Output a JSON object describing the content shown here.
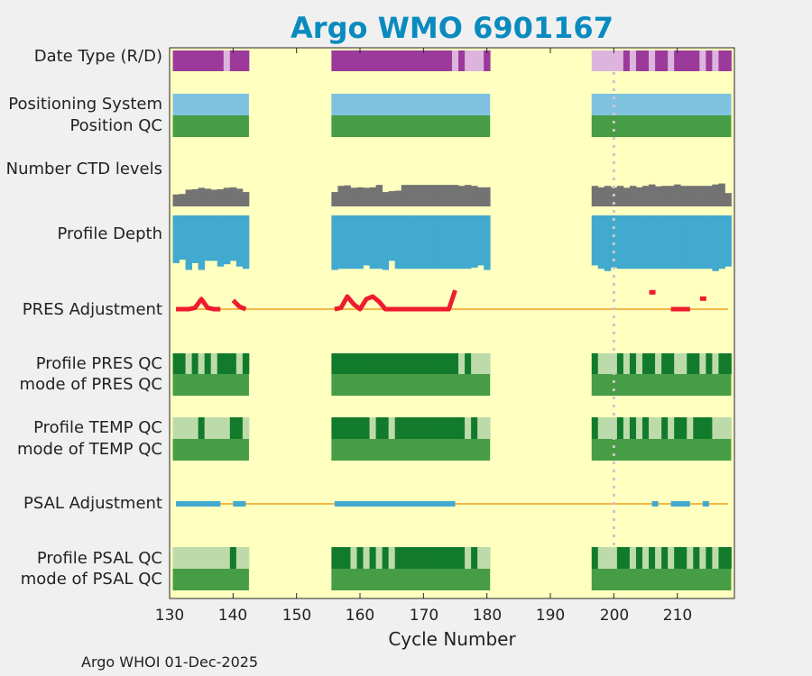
{
  "chart_data": {
    "type": "timeline-heatmap",
    "title": "Argo WMO 6901167",
    "xlabel": "Cycle Number",
    "xlim": [
      130,
      219
    ],
    "xticks": [
      130,
      140,
      150,
      160,
      170,
      180,
      190,
      200,
      210
    ],
    "segments": [
      [
        131,
        142
      ],
      [
        156,
        180
      ],
      [
        197,
        218
      ]
    ],
    "marker_cycle": 200,
    "colors": {
      "background": "#ffffc0",
      "realtime": "#9b3a9b",
      "delayed": "#ddb4dd",
      "positioning": "#7ec2e0",
      "position_qc": "#469d46",
      "ctd": "#737373",
      "depth": "#42a9cf",
      "adjust_line": "#f4b847",
      "pres_adjust": "#ee1c2e",
      "psal_adjust": "#42a9cf",
      "qc_dark": "#127b2b",
      "qc_light": "#bddbaa",
      "qc_mode": "#469d46",
      "marker": "#c8c8c8"
    },
    "rows": [
      {
        "label": "Date Type (R/D)"
      },
      {
        "label": "Positioning System"
      },
      {
        "label": "Position QC"
      },
      {
        "label": "Number CTD levels"
      },
      {
        "label": "Profile Depth"
      },
      {
        "label": "PRES Adjustment"
      },
      {
        "label": "Profile PRES QC"
      },
      {
        "label": "mode of PRES QC"
      },
      {
        "label": "Profile TEMP QC"
      },
      {
        "label": "mode of TEMP QC"
      },
      {
        "label": "PSAL Adjustment"
      },
      {
        "label": "Profile PSAL QC"
      },
      {
        "label": "mode of PSAL QC"
      }
    ],
    "date_type_delayed_cycles": [
      139,
      175,
      177,
      178,
      179,
      197,
      198,
      199,
      200,
      201,
      203,
      206,
      209,
      214,
      216
    ],
    "ctd_levels": {
      "131": 50,
      "132": 52,
      "133": 70,
      "134": 72,
      "135": 78,
      "136": 74,
      "137": 70,
      "138": 72,
      "139": 78,
      "140": 80,
      "141": 74,
      "142": 60,
      "156": 60,
      "157": 86,
      "158": 88,
      "159": 78,
      "160": 80,
      "161": 78,
      "162": 80,
      "163": 90,
      "164": 60,
      "165": 64,
      "166": 66,
      "167": 90,
      "168": 90,
      "169": 90,
      "170": 90,
      "171": 90,
      "172": 90,
      "173": 90,
      "174": 90,
      "175": 90,
      "176": 86,
      "177": 90,
      "178": 86,
      "179": 80,
      "180": 80,
      "197": 86,
      "198": 80,
      "199": 86,
      "200": 80,
      "201": 86,
      "202": 78,
      "203": 86,
      "204": 80,
      "205": 86,
      "206": 92,
      "207": 84,
      "208": 86,
      "209": 86,
      "210": 92,
      "211": 86,
      "212": 86,
      "213": 86,
      "214": 86,
      "215": 86,
      "216": 92,
      "217": 96,
      "218": 56
    },
    "profile_depth": {
      "131": 84,
      "132": 78,
      "133": 96,
      "134": 84,
      "135": 96,
      "136": 80,
      "137": 80,
      "138": 90,
      "139": 86,
      "140": 80,
      "141": 90,
      "142": 94,
      "156": 96,
      "157": 94,
      "158": 94,
      "159": 94,
      "160": 94,
      "161": 88,
      "162": 94,
      "163": 94,
      "164": 96,
      "165": 80,
      "166": 94,
      "167": 94,
      "168": 94,
      "169": 94,
      "170": 94,
      "171": 94,
      "172": 94,
      "173": 94,
      "174": 94,
      "175": 94,
      "176": 94,
      "177": 94,
      "178": 92,
      "179": 88,
      "180": 96,
      "197": 88,
      "198": 94,
      "199": 98,
      "200": 92,
      "201": 94,
      "202": 94,
      "203": 94,
      "204": 94,
      "205": 94,
      "206": 94,
      "207": 94,
      "208": 94,
      "209": 94,
      "210": 94,
      "211": 94,
      "212": 94,
      "213": 94,
      "214": 94,
      "215": 94,
      "216": 98,
      "217": 94,
      "218": 90
    },
    "pres_adjustment": [
      {
        "cycle": 131,
        "value": 0
      },
      {
        "cycle": 133,
        "value": 0
      },
      {
        "cycle": 134,
        "value": 0.2
      },
      {
        "cycle": 135,
        "value": 1.6
      },
      {
        "cycle": 136,
        "value": 0.2
      },
      {
        "cycle": 137,
        "value": 0
      },
      {
        "cycle": 138,
        "value": 0
      },
      {
        "gap": true
      },
      {
        "cycle": 140,
        "value": 1.4
      },
      {
        "cycle": 141,
        "value": 0.4
      },
      {
        "cycle": 142,
        "value": 0
      },
      {
        "gap": true
      },
      {
        "cycle": 156,
        "value": 0
      },
      {
        "cycle": 157,
        "value": 0.2
      },
      {
        "cycle": 158,
        "value": 2.0
      },
      {
        "cycle": 159,
        "value": 0.8
      },
      {
        "cycle": 160,
        "value": 0
      },
      {
        "cycle": 161,
        "value": 1.6
      },
      {
        "cycle": 162,
        "value": 2.0
      },
      {
        "cycle": 163,
        "value": 1.2
      },
      {
        "cycle": 164,
        "value": 0
      },
      {
        "cycle": 174,
        "value": 0
      },
      {
        "cycle": 175,
        "value": 3.0
      },
      {
        "gap": true
      },
      {
        "cycle": 206,
        "value": 2.6
      },
      {
        "gap": true
      },
      {
        "cycle": 209,
        "value": 0
      },
      {
        "cycle": 212,
        "value": 0
      },
      {
        "gap": true
      },
      {
        "cycle": 214,
        "value": 1.6
      }
    ],
    "psal_adjustment_ranges": [
      [
        131,
        138
      ],
      [
        140,
        142
      ],
      [
        156,
        175
      ],
      [
        206,
        207
      ],
      [
        209,
        212
      ],
      [
        214,
        215
      ]
    ],
    "profile_pres_qc_dark": [
      131,
      132,
      134,
      136,
      138,
      139,
      140,
      142,
      156,
      157,
      158,
      159,
      160,
      161,
      162,
      163,
      164,
      165,
      166,
      167,
      168,
      169,
      170,
      171,
      172,
      173,
      174,
      175,
      177,
      197,
      201,
      203,
      205,
      206,
      208,
      209,
      212,
      213,
      215,
      217,
      218
    ],
    "profile_temp_qc_dark": [
      135,
      140,
      141,
      156,
      157,
      158,
      159,
      160,
      161,
      163,
      164,
      166,
      167,
      168,
      169,
      170,
      171,
      172,
      173,
      174,
      175,
      176,
      178,
      197,
      201,
      203,
      205,
      208,
      210,
      211,
      213,
      214,
      215
    ],
    "profile_psal_qc_dark": [
      140,
      156,
      157,
      158,
      160,
      162,
      164,
      166,
      167,
      168,
      169,
      170,
      171,
      172,
      173,
      174,
      175,
      176,
      178,
      197,
      201,
      202,
      204,
      206,
      208,
      210,
      211,
      213,
      215,
      217,
      218
    ]
  },
  "footer": "Argo WHOI 01-Dec-2025"
}
